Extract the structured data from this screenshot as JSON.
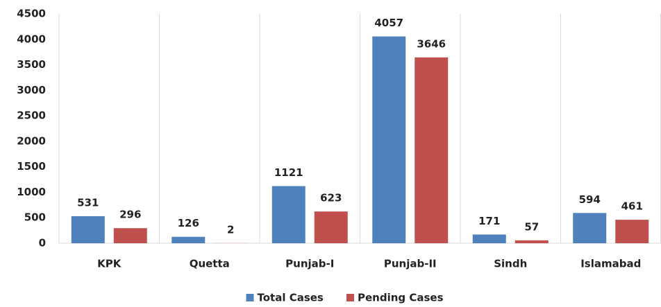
{
  "chart_data": {
    "type": "bar",
    "categories": [
      "KPK",
      "Quetta",
      "Punjab-I",
      "Punjab-II",
      "Sindh",
      "Islamabad"
    ],
    "series": [
      {
        "name": "Total Cases",
        "color": "#4f81bd",
        "values": [
          531,
          126,
          1121,
          4057,
          171,
          594
        ]
      },
      {
        "name": "Pending Cases",
        "color": "#c0504d",
        "values": [
          296,
          2,
          623,
          3646,
          57,
          461
        ]
      }
    ],
    "ylim": [
      0,
      4500
    ],
    "yticks": [
      0,
      500,
      1000,
      1500,
      2000,
      2500,
      3000,
      3500,
      4000,
      4500
    ],
    "category_separators": true,
    "legend": "bottom"
  }
}
